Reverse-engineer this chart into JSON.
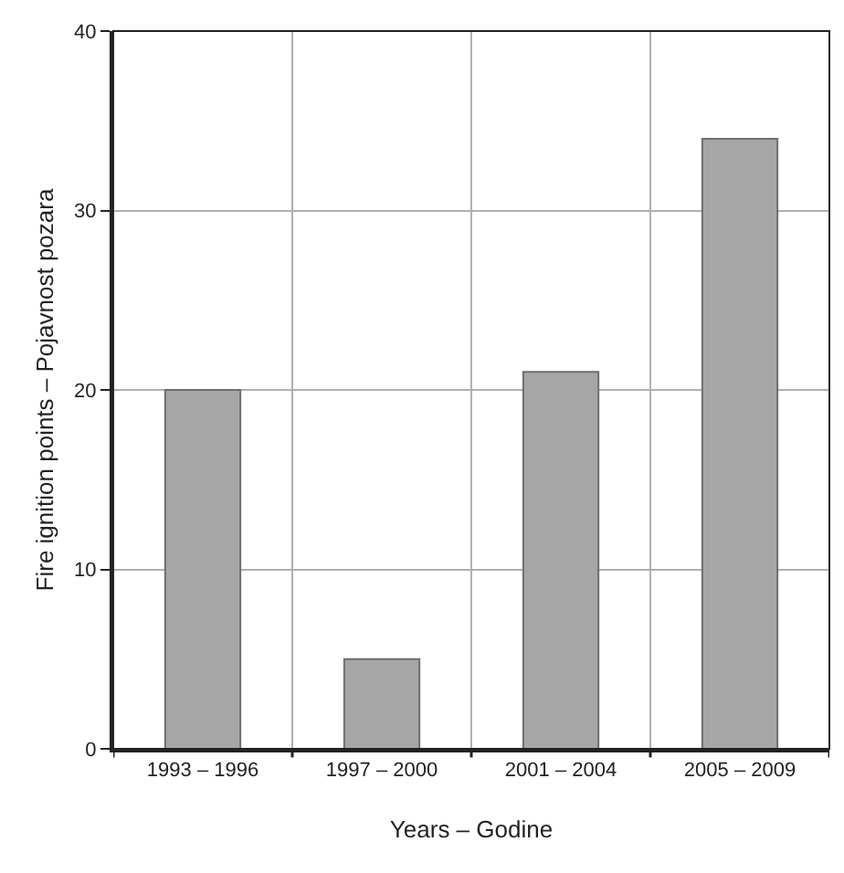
{
  "chart_data": {
    "type": "bar",
    "xlabel": "Years – Godine",
    "ylabel": "Fire ignition points – Pojavnost pozara",
    "categories": [
      "1993 – 1996",
      "1997 – 2000",
      "2001 – 2004",
      "2005 – 2009"
    ],
    "values": [
      20,
      5,
      21,
      34
    ],
    "color": "#a6a6a6",
    "ylim": [
      0,
      40
    ],
    "yticks": [
      0,
      10,
      20,
      30,
      40
    ],
    "grid": true
  }
}
